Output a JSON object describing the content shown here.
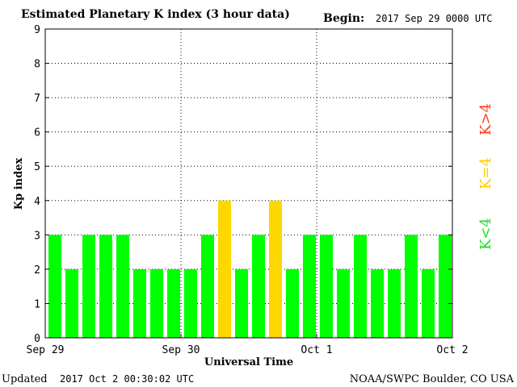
{
  "header": {
    "title": "Estimated Planetary K index (3 hour data)",
    "begin_label": "Begin:",
    "begin_value": "2017 Sep 29 0000 UTC"
  },
  "footer": {
    "updated_label": "Updated",
    "updated_value": "2017 Oct  2 00:30:02 UTC",
    "source": "NOAA/SWPC Boulder, CO USA"
  },
  "legend": {
    "low": "K<4",
    "equal": "K=4",
    "high": "K>4"
  },
  "colors": {
    "low": "#00ff00",
    "equal": "#ffd700",
    "high": "#ff0000"
  },
  "chart_data": {
    "type": "bar",
    "title": "Estimated Planetary K index (3 hour data)",
    "xlabel": "Universal Time",
    "ylabel": "Kp index",
    "ylim": [
      0,
      9
    ],
    "y_ticks": [
      "0",
      "1",
      "2",
      "3",
      "4",
      "5",
      "6",
      "7",
      "8",
      "9"
    ],
    "x_ticks": [
      "Sep 29",
      "Sep 30",
      "Oct 1",
      "Oct 2"
    ],
    "grid": "dotted",
    "bar_interval_hours": 3,
    "values": [
      3,
      2,
      3,
      3,
      3,
      2,
      2,
      2,
      2,
      3,
      4,
      2,
      3,
      4,
      2,
      3,
      3,
      2,
      3,
      2,
      2,
      3,
      2,
      3
    ]
  }
}
